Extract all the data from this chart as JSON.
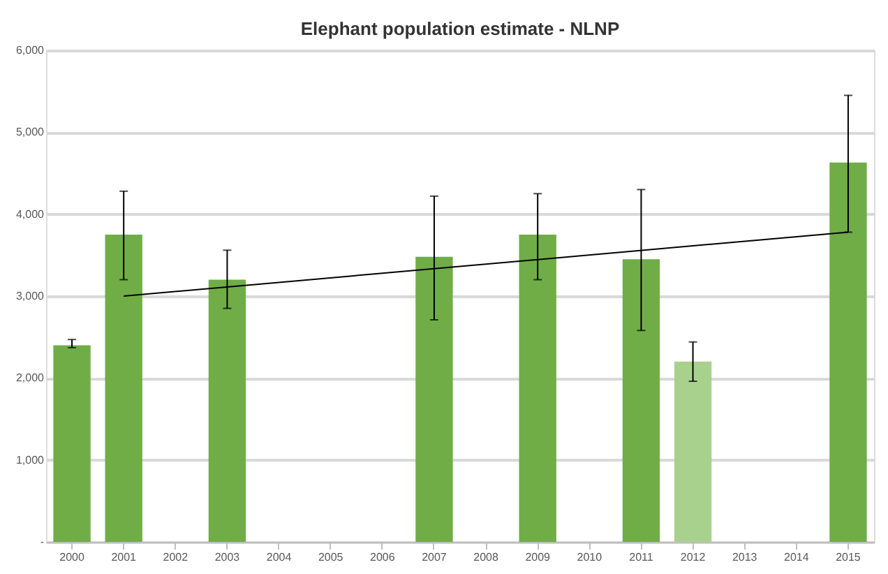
{
  "chart_data": {
    "type": "bar",
    "title": "Elephant population estimate - NLNP",
    "categories": [
      "2000",
      "2001",
      "2002",
      "2003",
      "2004",
      "2005",
      "2006",
      "2007",
      "2008",
      "2009",
      "2010",
      "2011",
      "2012",
      "2013",
      "2014",
      "2015"
    ],
    "series": [
      {
        "values": [
          2400,
          3750,
          null,
          3200,
          null,
          null,
          null,
          3480,
          null,
          3750,
          null,
          3450,
          2200,
          null,
          null,
          4630
        ],
        "colors": [
          "#70ad47",
          "#70ad47",
          null,
          "#70ad47",
          null,
          null,
          null,
          "#70ad47",
          null,
          "#70ad47",
          null,
          "#70ad47",
          "#a9d18e",
          null,
          null,
          "#70ad47"
        ],
        "errors": [
          [
            2370,
            2470
          ],
          [
            3200,
            4280
          ],
          null,
          [
            2850,
            3560
          ],
          null,
          null,
          null,
          [
            2710,
            4220
          ],
          null,
          [
            3200,
            4250
          ],
          null,
          [
            2580,
            4300
          ],
          [
            1960,
            2440
          ],
          null,
          null,
          [
            3780,
            5450
          ]
        ]
      },
      {
        "type": "line",
        "color": "#000000",
        "values": [
          null,
          3000,
          null,
          null,
          null,
          null,
          null,
          null,
          null,
          null,
          null,
          null,
          null,
          null,
          null,
          3780
        ]
      }
    ],
    "ylim": [
      0,
      6000
    ],
    "yticks": [
      {
        "value": 0,
        "label": "-"
      },
      {
        "value": 1000,
        "label": "1,000"
      },
      {
        "value": 2000,
        "label": "2,000"
      },
      {
        "value": 3000,
        "label": "3,000"
      },
      {
        "value": 4000,
        "label": "4,000"
      },
      {
        "value": 5000,
        "label": "5,000"
      },
      {
        "value": 6000,
        "label": "6,000"
      }
    ],
    "grid": "y"
  }
}
